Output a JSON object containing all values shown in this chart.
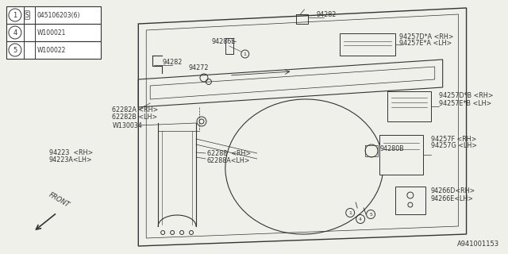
{
  "bg_color": "#f0f0eb",
  "line_color": "#333333",
  "footer_text": "A941001153",
  "legend": [
    {
      "num": "1",
      "code": "S",
      "part": "045106203(6)"
    },
    {
      "num": "4",
      "code": "",
      "part": "W100021"
    },
    {
      "num": "5",
      "code": "",
      "part": "W100022"
    }
  ],
  "figsize": [
    6.4,
    3.2
  ],
  "dpi": 100
}
